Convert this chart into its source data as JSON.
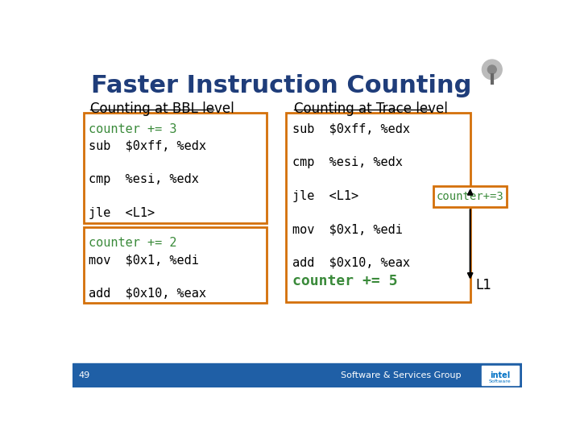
{
  "title": "Faster Instruction Counting",
  "title_color": "#1F3D7A",
  "background_color": "#FFFFFF",
  "footer_color": "#1F5FA6",
  "bbl_label": "Counting at BBL level",
  "trace_label": "Counting at Trace level",
  "label_color": "#000000",
  "orange_border": "#D4700A",
  "green_text": "#3A8A3A",
  "black_text": "#000000",
  "counter_plus5_color": "#3A8A3A",
  "page_number": "49",
  "footer_text": "Software & Services Group",
  "bbl_box1_lines": [
    "counter += 3",
    "sub  $0xff, %edx",
    "",
    "cmp  %esi, %edx",
    "",
    "jle  <L1>"
  ],
  "bbl_box2_lines": [
    "counter += 2",
    "mov  $0x1, %edi",
    "",
    "add  $0x10, %eax"
  ],
  "trace_box_lines": [
    "sub  $0xff, %edx",
    "",
    "cmp  %esi, %edx",
    "",
    "jle  <L1>",
    "",
    "mov  $0x1, %edi",
    "",
    "add  $0x10, %eax",
    "counter += 5"
  ],
  "counter3_box": "counter+=3",
  "L1_label": "L1"
}
